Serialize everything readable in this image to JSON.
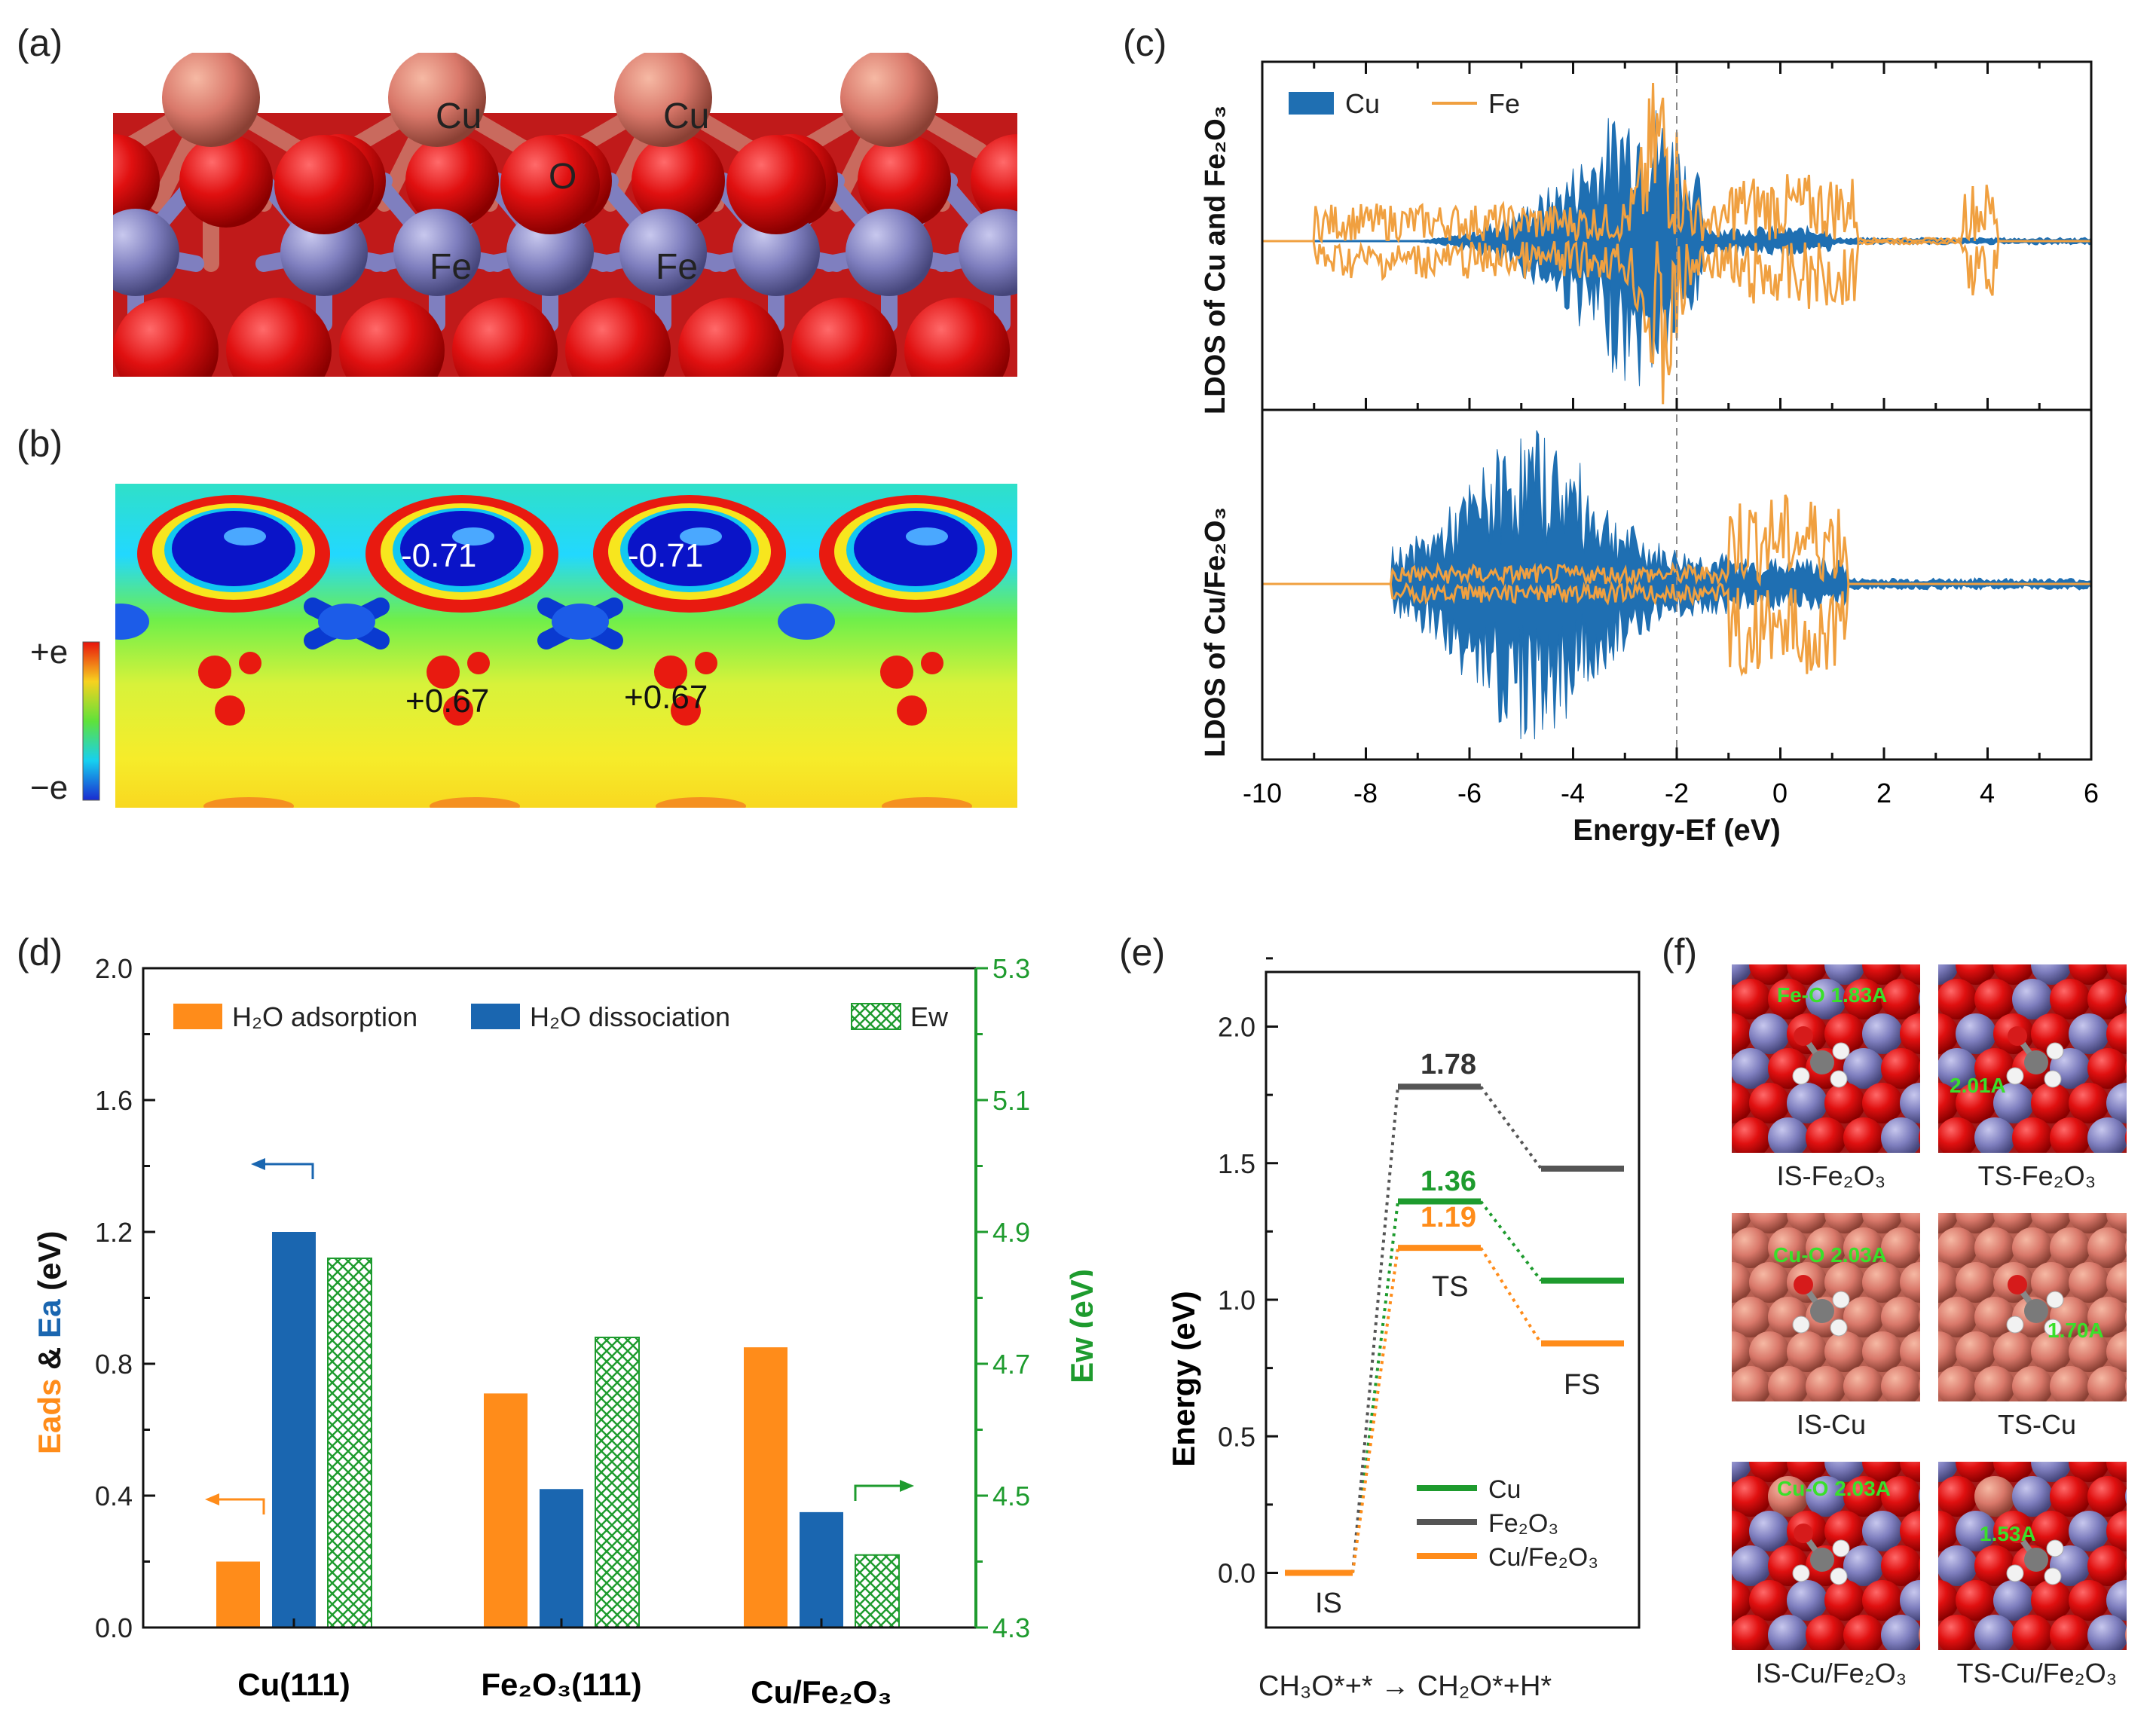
{
  "panel_a": {
    "label": "(a)",
    "atom_labels": [
      "Cu",
      "Cu",
      "O",
      "Fe",
      "Fe"
    ]
  },
  "panel_b": {
    "label": "(b)",
    "colorbar_top": "+e",
    "colorbar_bottom": "−e",
    "charges": [
      "-0.71",
      "-0.71",
      "+0.67",
      "+0.67"
    ]
  },
  "panel_c": {
    "label": "(c)",
    "legend": [
      "Cu",
      "Fe"
    ],
    "ylabel_top": "LDOS of Cu and Fe₂O₃",
    "ylabel_bottom": "LDOS of Cu/Fe₂O₃",
    "xlabel": "Energy-Ef (eV)",
    "xticks": [
      "-10",
      "-8",
      "-6",
      "-4",
      "-2",
      "0",
      "2",
      "4",
      "6"
    ],
    "colors": {
      "cu": "#1f6fb2",
      "fe": "#f0a040"
    }
  },
  "panel_d": {
    "label": "(d)",
    "ylabel_eads": "Eads",
    "ylabel_amp": " & ",
    "ylabel_ea": "Ea",
    "ylabel_unit": " (eV)",
    "y2label": "Ew (eV)",
    "colors": {
      "ads": "#ff8c1a",
      "dis": "#1a66b0",
      "ew": "#1e9b2e"
    }
  },
  "panel_e": {
    "label": "(e)",
    "ylabel": "Energy (eV)",
    "state_labels": [
      "IS",
      "TS",
      "FS"
    ],
    "reaction": "CH₃O*+* → CH₂O*+H*",
    "value_labels": [
      "1.78",
      "1.36",
      "1.19"
    ]
  },
  "panel_f": {
    "label": "(f)",
    "captions": [
      "IS-Fe₂O₃",
      "TS-Fe₂O₃",
      "IS-Cu",
      "TS-Cu",
      "IS-Cu/Fe₂O₃",
      "TS-Cu/Fe₂O₃"
    ],
    "bond_labels": [
      "Fe-O 1.83A",
      "2.01A",
      "Cu-O 2.03A",
      "1.70A",
      "Cu-O 2.03A",
      "1.53A"
    ]
  },
  "chart_data": [
    {
      "type": "bar",
      "title": "",
      "categories": [
        "Cu(111)",
        "Fe₂O₃(111)",
        "Cu/Fe₂O₃"
      ],
      "series": [
        {
          "name": "H₂O adsorption",
          "axis": "left",
          "values": [
            0.2,
            0.71,
            0.85
          ]
        },
        {
          "name": "H₂O dissociation",
          "axis": "left",
          "values": [
            1.2,
            0.42,
            0.35
          ]
        },
        {
          "name": "Ew",
          "axis": "right",
          "values": [
            4.86,
            4.74,
            4.41
          ]
        }
      ],
      "ylabel": "Eads & Ea (eV)",
      "y2label": "Ew (eV)",
      "ylim": [
        0,
        2.0
      ],
      "y2lim": [
        4.3,
        5.3
      ],
      "yticks": [
        "0.0",
        "0.4",
        "0.8",
        "1.2",
        "1.6",
        "2.0"
      ],
      "y2ticks": [
        "4.3",
        "4.5",
        "4.7",
        "4.9",
        "5.1",
        "5.3"
      ]
    },
    {
      "type": "line",
      "title": "",
      "x": [
        "IS",
        "TS",
        "FS"
      ],
      "series": [
        {
          "name": "Cu",
          "values": [
            0.0,
            1.36,
            1.07
          ]
        },
        {
          "name": "Fe₂O₃",
          "values": [
            0.0,
            1.78,
            1.48
          ]
        },
        {
          "name": "Cu/Fe₂O₃",
          "values": [
            0.0,
            1.19,
            0.84
          ]
        }
      ],
      "ylabel": "Energy (eV)",
      "ylim": [
        -0.2,
        2.2
      ],
      "yticks": [
        "0.0",
        "0.5",
        "1.0",
        "1.5",
        "2.0"
      ],
      "xlabel": "CH₃O*+* → CH₂O*+H*",
      "colors": [
        "#1e9b2e",
        "#555555",
        "#ff8c1a"
      ]
    }
  ]
}
